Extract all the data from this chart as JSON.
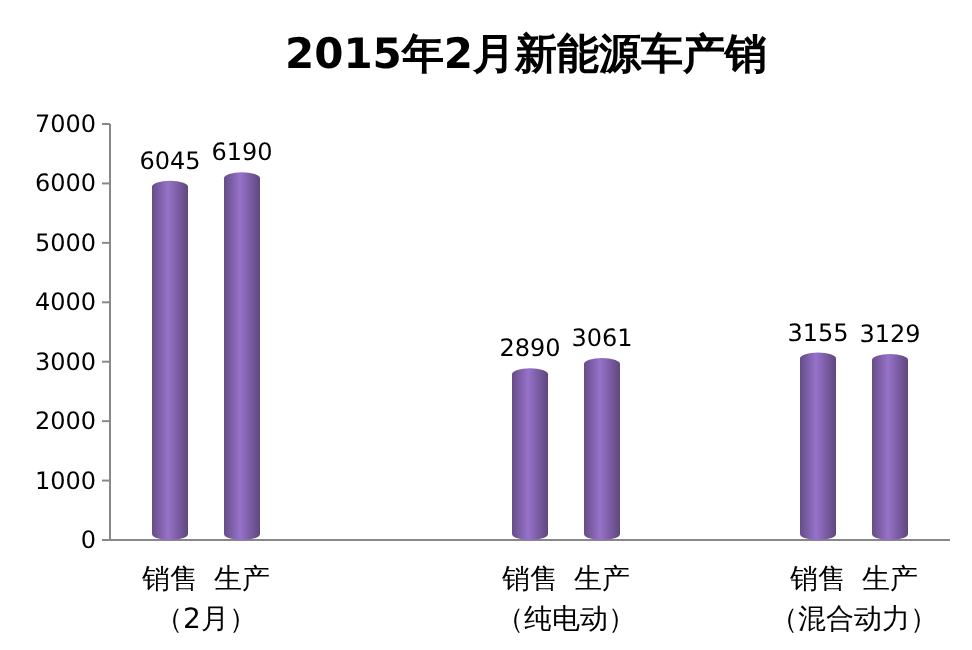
{
  "chart_data": {
    "type": "bar",
    "title": "2015年2月新能源车产销",
    "categories": [
      "销售",
      "生产",
      null,
      null,
      null,
      "销售",
      "生产",
      null,
      null,
      "销售",
      "生产"
    ],
    "values": [
      6045,
      6190,
      null,
      null,
      null,
      2890,
      3061,
      null,
      null,
      3155,
      3129
    ],
    "color": "#7e5fa8",
    "ylim": [
      0,
      7000
    ],
    "yticks": [
      0,
      1000,
      2000,
      3000,
      4000,
      5000,
      6000,
      7000
    ],
    "data_labels": true,
    "annotations": [
      "（2月）",
      "（纯电动）",
      "（混合动力）"
    ]
  }
}
